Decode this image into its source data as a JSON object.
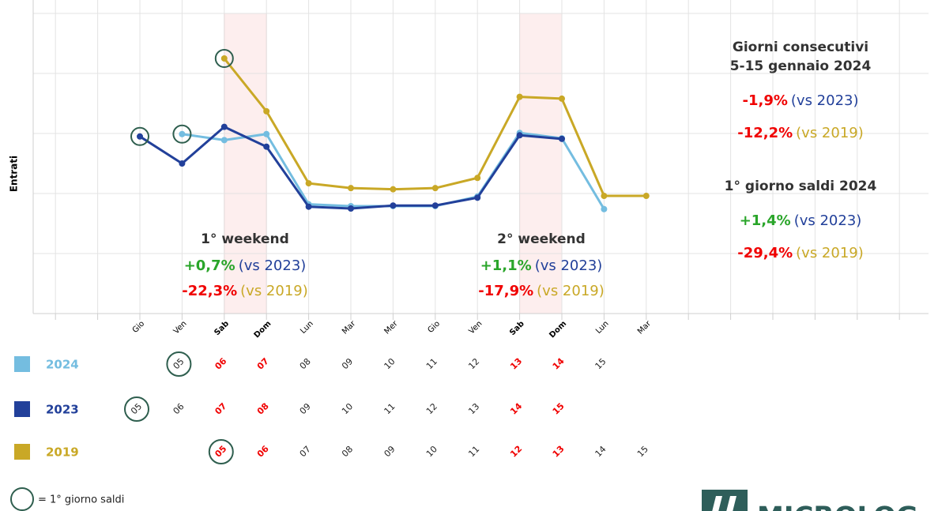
{
  "chart_data": {
    "type": "line",
    "ylabel": "Entrati",
    "categories": [
      "Gio",
      "Ven",
      "Sab",
      "Dom",
      "Lun",
      "Mar",
      "Mer",
      "Gio",
      "Ven",
      "Sab",
      "Dom",
      "Lun",
      "Mar"
    ],
    "highlight": [
      false,
      false,
      true,
      true,
      false,
      false,
      false,
      false,
      false,
      true,
      true,
      false,
      false
    ],
    "ylim": [
      0,
      5
    ],
    "ygrid": [
      0,
      1,
      2,
      3,
      4,
      5
    ],
    "series": [
      {
        "name": "2024",
        "color": "#74bde0",
        "first_sale": 1,
        "values": [
          null,
          2.99,
          2.89,
          2.99,
          1.82,
          1.79,
          1.79,
          1.79,
          1.95,
          3.01,
          2.92,
          1.74,
          null
        ],
        "days": [
          null,
          "05",
          "06",
          "07",
          "08",
          "09",
          "10",
          "11",
          "12",
          "13",
          "14",
          "15",
          null
        ]
      },
      {
        "name": "2023",
        "color": "#22409a",
        "first_sale": 0,
        "values": [
          2.95,
          2.5,
          3.11,
          2.78,
          1.78,
          1.75,
          1.8,
          1.8,
          1.93,
          2.97,
          2.91,
          null,
          null
        ],
        "days": [
          "05",
          "06",
          "07",
          "08",
          "09",
          "10",
          "11",
          "12",
          "13",
          "14",
          "15",
          null,
          null
        ]
      },
      {
        "name": "2019",
        "color": "#c9a826",
        "first_sale": 2,
        "values": [
          null,
          null,
          4.25,
          3.37,
          2.17,
          2.09,
          2.07,
          2.09,
          2.26,
          3.61,
          3.58,
          1.96,
          1.96
        ],
        "days": [
          null,
          null,
          "05",
          "06",
          "07",
          "08",
          "09",
          "10",
          "11",
          "12",
          "13",
          "14",
          "15"
        ]
      }
    ],
    "annotations": [
      {
        "title": [
          "1° weekend"
        ],
        "lines": [
          {
            "value": "+0,7%",
            "color": "#2aa52a",
            "label": "(vs 2023)",
            "label_color": "#22409a"
          },
          {
            "value": "-22,3%",
            "color": "#f00000",
            "label": "(vs 2019)",
            "label_color": "#c9a826"
          }
        ]
      },
      {
        "title": [
          "2° weekend"
        ],
        "lines": [
          {
            "value": "+1,1%",
            "color": "#2aa52a",
            "label": "(vs 2023)",
            "label_color": "#22409a"
          },
          {
            "value": "-17,9%",
            "color": "#f00000",
            "label": "(vs 2019)",
            "label_color": "#c9a826"
          }
        ]
      },
      {
        "title": [
          "Giorni consecutivi",
          "5-15 gennaio 2024"
        ],
        "lines": [
          {
            "value": "-1,9%",
            "color": "#f00000",
            "label": "(vs 2023)",
            "label_color": "#22409a"
          },
          {
            "value": "-12,2%",
            "color": "#f00000",
            "label": "(vs 2019)",
            "label_color": "#c9a826"
          }
        ]
      },
      {
        "title": [
          "1° giorno saldi 2024"
        ],
        "lines": [
          {
            "value": "+1,4%",
            "color": "#2aa52a",
            "label": "(vs 2023)",
            "label_color": "#22409a"
          },
          {
            "value": "-29,4%",
            "color": "#f00000",
            "label": "(vs 2019)",
            "label_color": "#c9a826"
          }
        ]
      }
    ],
    "circle_legend": "= 1° giorno saldi",
    "logo": "MICROLOG"
  }
}
